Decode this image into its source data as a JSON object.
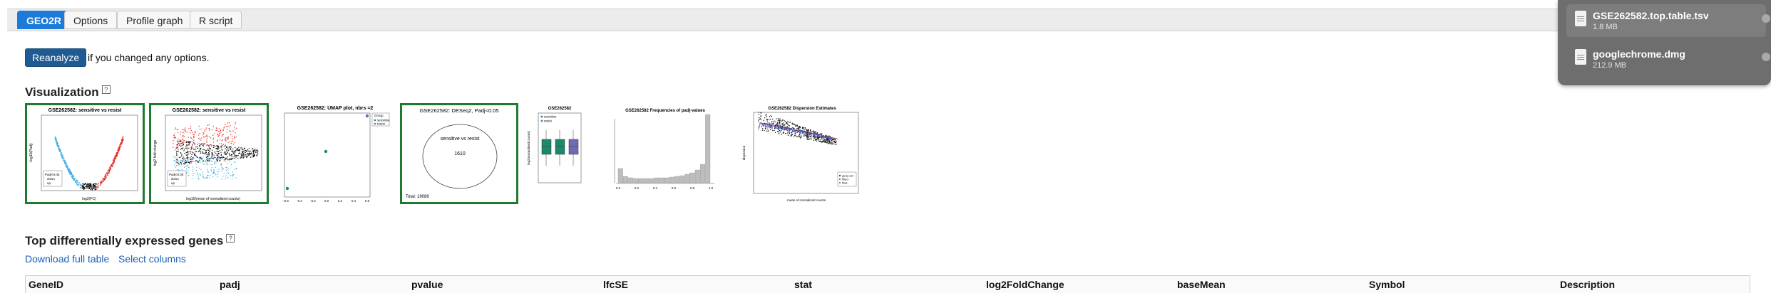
{
  "tabs": [
    {
      "label": "GEO2R",
      "active": true
    },
    {
      "label": "Options",
      "active": false
    },
    {
      "label": "Profile graph",
      "active": false
    },
    {
      "label": "R script",
      "active": false
    }
  ],
  "reanalyze": {
    "label": "Reanalyze",
    "hint": "if you changed any options."
  },
  "visualization": {
    "heading": "Visualization",
    "help": "?",
    "thumbs": [
      {
        "title": "GSE262582: sensitive vs resist",
        "xlabel": "log2(FC)",
        "ylabel": "-log10(Padj)",
        "legend": [
          "Padj<0.05",
          "down",
          "up"
        ],
        "xticks": [
          "-10",
          "-5",
          "0",
          "5",
          "10"
        ]
      },
      {
        "title": "GSE262582: sensitive vs resist",
        "xlabel": "log10(mean of normalized counts)",
        "ylabel": "log2 fold change",
        "legend": [
          "Padj<0.05",
          "down",
          "up"
        ]
      },
      {
        "title": "GSE262582: UMAP plot, nbrs =2",
        "legend": [
          "Group",
          "sensitive",
          "resist"
        ],
        "xticks": [
          "-0.6",
          "-0.4",
          "-0.2",
          "0.0",
          "0.2",
          "0.4",
          "0.6"
        ]
      },
      {
        "title": "GSE262582: DESeq2, Padj<0.05",
        "label": "sensitive vs resist",
        "count": "1610",
        "total": "Total: 19086"
      },
      {
        "title": "GSE262582",
        "legend": [
          "sensitive",
          "resist"
        ],
        "ylabel": "log2(normalized counts)"
      },
      {
        "title": "GSE262582 Frequencies of padj-values",
        "xticks": [
          "0.0",
          "0.2",
          "0.4",
          "0.6",
          "0.8",
          "1.0"
        ]
      },
      {
        "title": "GSE262582 Dispersion Estimates",
        "xlabel": "mean of normalized counts",
        "ylabel": "dispersion",
        "legend": [
          "gene-est",
          "fitted",
          "final"
        ]
      }
    ]
  },
  "top_genes": {
    "heading": "Top differentially expressed genes",
    "help": "?",
    "download": "Download full table",
    "select": "Select columns",
    "columns": [
      "GeneID",
      "padj",
      "pvalue",
      "lfcSE",
      "stat",
      "log2FoldChange",
      "baseMean",
      "Symbol",
      "Description"
    ]
  },
  "downloads": [
    {
      "name": "GSE262582.top.table.tsv",
      "size": "1.8 MB"
    },
    {
      "name": "googlechrome.dmg",
      "size": "212.9 MB"
    }
  ],
  "colors": {
    "tab_active": "#1c7bd9",
    "button": "#1f5a93",
    "selected_border": "#1e7a2e",
    "up": "#e8312d",
    "down": "#3fb1e6",
    "group_green": "#1b8a6b",
    "group_purple": "#6d6bb5",
    "link": "#1a5fb4"
  }
}
